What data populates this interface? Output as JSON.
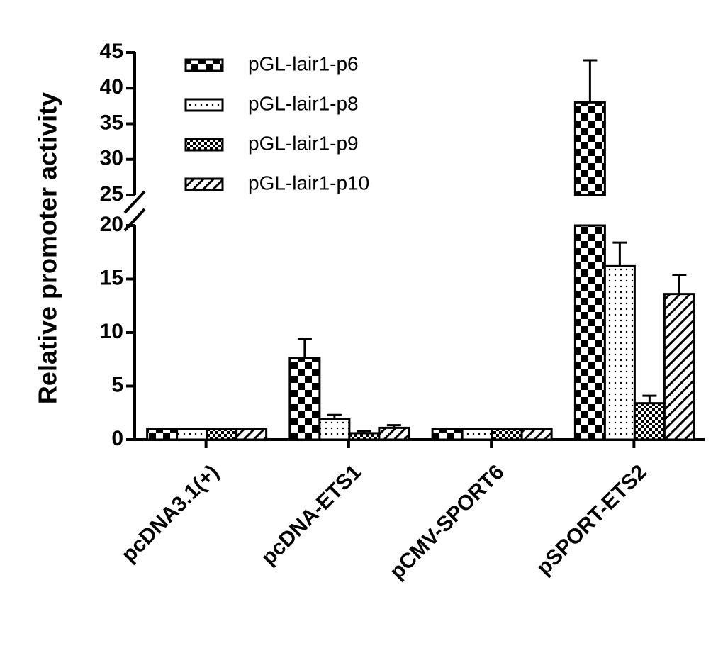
{
  "chart_data": {
    "type": "bar",
    "y_label": "Relative promoter activity",
    "categories": [
      "pcDNA3.1(+)",
      "pcDNA-ETS1",
      "pCMV-SPORT6",
      "pSPORT-ETS2"
    ],
    "series": [
      {
        "name": "pGL-lair1-p6",
        "color": "#000000",
        "pattern": "checker",
        "values": [
          1,
          7.6,
          1,
          38
        ],
        "errors": [
          0,
          1.8,
          0,
          5.9
        ]
      },
      {
        "name": "pGL-lair1-p8",
        "color": "#000000",
        "pattern": "dots",
        "values": [
          1,
          1.9,
          1,
          16.2
        ],
        "errors": [
          0,
          0.4,
          0,
          2.2
        ]
      },
      {
        "name": "pGL-lair1-p9",
        "color": "#000000",
        "pattern": "fine-checker",
        "values": [
          1,
          0.6,
          1,
          3.4
        ],
        "errors": [
          0,
          0.2,
          0,
          0.7
        ]
      },
      {
        "name": "pGL-lair1-p10",
        "color": "#000000",
        "pattern": "hatch",
        "values": [
          1,
          1.1,
          1,
          13.6
        ],
        "errors": [
          0,
          0.25,
          0,
          1.8
        ]
      }
    ],
    "ylim": [
      0,
      45
    ],
    "axis_break": [
      20,
      25
    ],
    "yticks": [
      0,
      5,
      10,
      15,
      20,
      25,
      30,
      35,
      40,
      45
    ]
  }
}
